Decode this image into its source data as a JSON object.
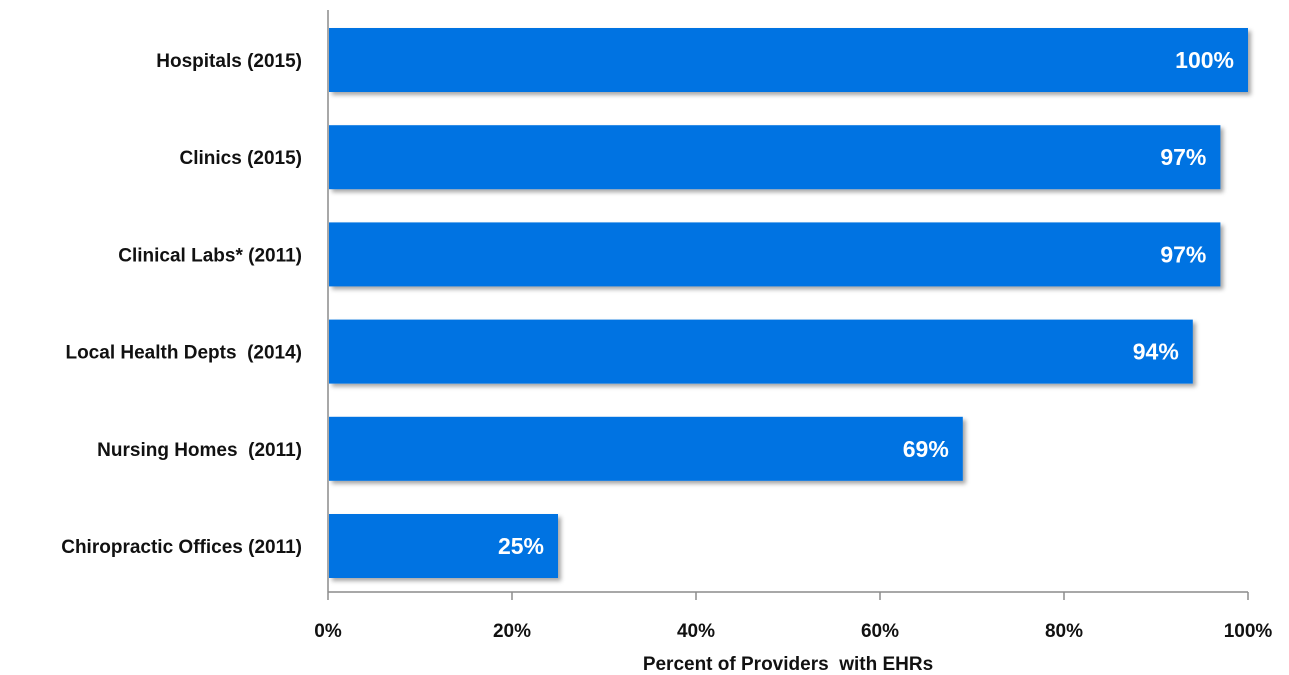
{
  "chart_data": {
    "type": "bar",
    "orientation": "horizontal",
    "categories": [
      "Hospitals (2015)",
      "Clinics (2015)",
      "Clinical Labs* (2011)",
      "Local Health Depts  (2014)",
      "Nursing Homes  (2011)",
      "Chiropractic Offices (2011)"
    ],
    "values": [
      100,
      97,
      97,
      94,
      69,
      25
    ],
    "data_labels": [
      "100%",
      "97%",
      "97%",
      "94%",
      "69%",
      "25%"
    ],
    "xlabel": "Percent of Providers  with EHRs",
    "ylabel": "",
    "xlim": [
      0,
      100
    ],
    "x_ticks": [
      0,
      20,
      40,
      60,
      80,
      100
    ],
    "x_tick_labels": [
      "0%",
      "20%",
      "40%",
      "60%",
      "80%",
      "100%"
    ],
    "grid": false,
    "legend": "none",
    "bar_color": "#0073e2"
  }
}
